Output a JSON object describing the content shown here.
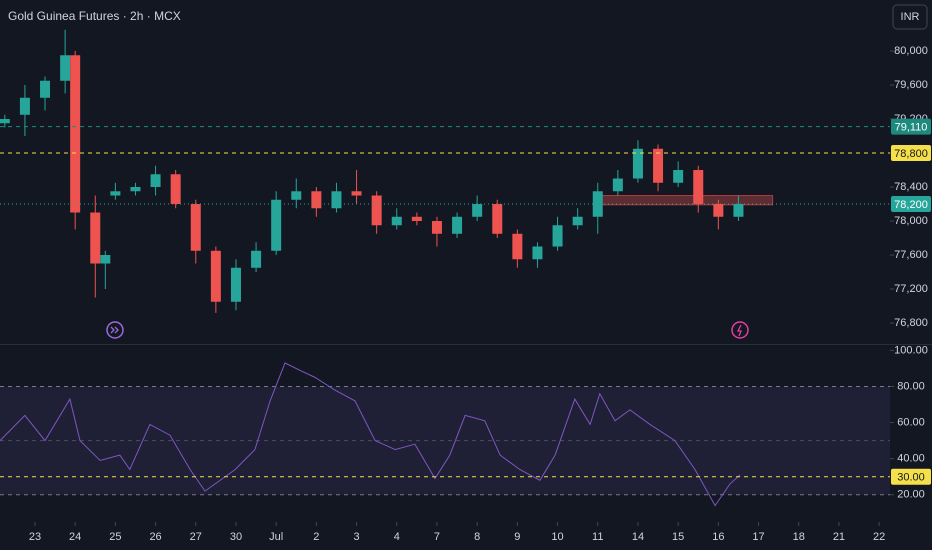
{
  "chart_data": [
    {
      "type": "candlestick",
      "title": "Gold Guinea Futures · 2h · MCX",
      "currency": "INR",
      "categories": [
        "23",
        "24",
        "25",
        "26",
        "27",
        "30",
        "Jul",
        "2",
        "3",
        "4",
        "7",
        "8",
        "9",
        "10",
        "11",
        "14",
        "15",
        "16",
        "17",
        "18",
        "21",
        "22"
      ],
      "xlim": [
        -0.87,
        21.27
      ],
      "candles": {
        "x": [
          -0.75,
          -0.25,
          0.25,
          0.75,
          1.0,
          1.5,
          1.75,
          2.0,
          2.5,
          3.0,
          3.5,
          4.0,
          4.5,
          5.0,
          5.5,
          6.0,
          6.5,
          7.0,
          7.5,
          8.0,
          8.5,
          9.0,
          9.5,
          10.0,
          10.5,
          11.0,
          11.5,
          12.0,
          12.5,
          13.0,
          13.5,
          14.0,
          14.5,
          15.0,
          15.5,
          16.0,
          16.5,
          17.0,
          17.5
        ],
        "open": [
          79150,
          79250,
          79450,
          79650,
          79950,
          78100,
          77500,
          78300,
          78350,
          78400,
          78550,
          78200,
          77650,
          77050,
          77450,
          77650,
          78250,
          78350,
          78150,
          78350,
          78300,
          77950,
          78050,
          78000,
          77850,
          78050,
          78200,
          77850,
          77550,
          77700,
          77950,
          78050,
          78350,
          78500,
          78850,
          78450,
          78600,
          78200,
          78050
        ],
        "high": [
          79250,
          79600,
          79700,
          80250,
          80000,
          78300,
          77650,
          78450,
          78450,
          78650,
          78600,
          78250,
          77700,
          77550,
          77750,
          78350,
          78500,
          78400,
          78450,
          78600,
          78350,
          78150,
          78100,
          78050,
          78100,
          78300,
          78250,
          77900,
          77750,
          78050,
          78150,
          78450,
          78600,
          78950,
          78900,
          78700,
          78650,
          78250,
          78300
        ],
        "low": [
          79100,
          79000,
          79300,
          79500,
          77900,
          77100,
          77200,
          78250,
          78300,
          78300,
          78150,
          77500,
          76920,
          76950,
          77400,
          77600,
          78150,
          78050,
          78100,
          78200,
          77850,
          77900,
          77950,
          77700,
          77800,
          78000,
          77800,
          77450,
          77450,
          77650,
          77900,
          77850,
          78300,
          78450,
          78350,
          78400,
          78100,
          77900,
          78000
        ],
        "close": [
          79200,
          79450,
          79650,
          79950,
          78100,
          77500,
          77600,
          78350,
          78400,
          78550,
          78200,
          77650,
          77050,
          77450,
          77650,
          78250,
          78350,
          78150,
          78350,
          78300,
          77950,
          78050,
          78000,
          77850,
          78050,
          78200,
          77850,
          77550,
          77700,
          77950,
          78050,
          78350,
          78500,
          78850,
          78450,
          78600,
          78200,
          78050,
          78200
        ]
      },
      "up_color": "#26a69a",
      "down_color": "#ef5350",
      "ylim": [
        76565,
        80600
      ],
      "yticks": [
        {
          "value": 80000,
          "label": "80,000"
        },
        {
          "value": 79600,
          "label": "79,600"
        },
        {
          "value": 79200,
          "label": "79,200"
        },
        {
          "value": 78800,
          "label": "78,800"
        },
        {
          "value": 78400,
          "label": "78,400"
        },
        {
          "value": 78000,
          "label": "78,000"
        },
        {
          "value": 77600,
          "label": "77,600"
        },
        {
          "value": 77200,
          "label": "77,200"
        },
        {
          "value": 76800,
          "label": "76,800"
        }
      ],
      "levels": [
        {
          "value": 79110,
          "label": "79,110",
          "color": "#1e8a7e",
          "style": "dashed"
        },
        {
          "value": 78800,
          "label": "78,800",
          "color": "#f5e04a",
          "style": "dashed"
        },
        {
          "value": 78200,
          "label": "78,200",
          "color": "#26a69a",
          "style": "dotted"
        }
      ],
      "zone": {
        "x": [
          14.05,
          18.35
        ],
        "y": [
          78190,
          78300
        ],
        "color": "#ef5350"
      }
    },
    {
      "type": "line",
      "x": [
        -0.87,
        -0.25,
        0.25,
        0.87,
        1.12,
        1.62,
        2.11,
        2.36,
        2.86,
        3.36,
        3.86,
        4.23,
        4.48,
        4.98,
        5.47,
        5.85,
        6.22,
        6.59,
        6.97,
        7.46,
        7.96,
        8.46,
        8.96,
        9.45,
        9.95,
        10.32,
        10.7,
        11.19,
        11.57,
        12.06,
        12.56,
        12.94,
        13.43,
        13.81,
        14.05,
        14.43,
        14.8,
        15.3,
        15.92,
        16.42,
        16.92,
        17.29,
        17.54
      ],
      "values": [
        50,
        64,
        50,
        73,
        50,
        39,
        42,
        34,
        59,
        53,
        34,
        22,
        26,
        34,
        45,
        72,
        93,
        89,
        85,
        78,
        72,
        50,
        45,
        48,
        29,
        42,
        64,
        61,
        42,
        34,
        28,
        42,
        73,
        59,
        76,
        61,
        67,
        59,
        50,
        34,
        14,
        26,
        31
      ],
      "color": "#7e57c2",
      "ylim": [
        6,
        103
      ],
      "yticks": [
        {
          "value": 100,
          "label": "100.00"
        },
        {
          "value": 80,
          "label": "80.00"
        },
        {
          "value": 60,
          "label": "60.00"
        },
        {
          "value": 40,
          "label": "40.00"
        },
        {
          "value": 20,
          "label": "20.00"
        }
      ],
      "band": [
        20,
        80
      ],
      "midline": 50,
      "levels": [
        {
          "value": 30,
          "label": "30.00",
          "color": "#f5e04a",
          "style": "dashed"
        }
      ]
    }
  ]
}
